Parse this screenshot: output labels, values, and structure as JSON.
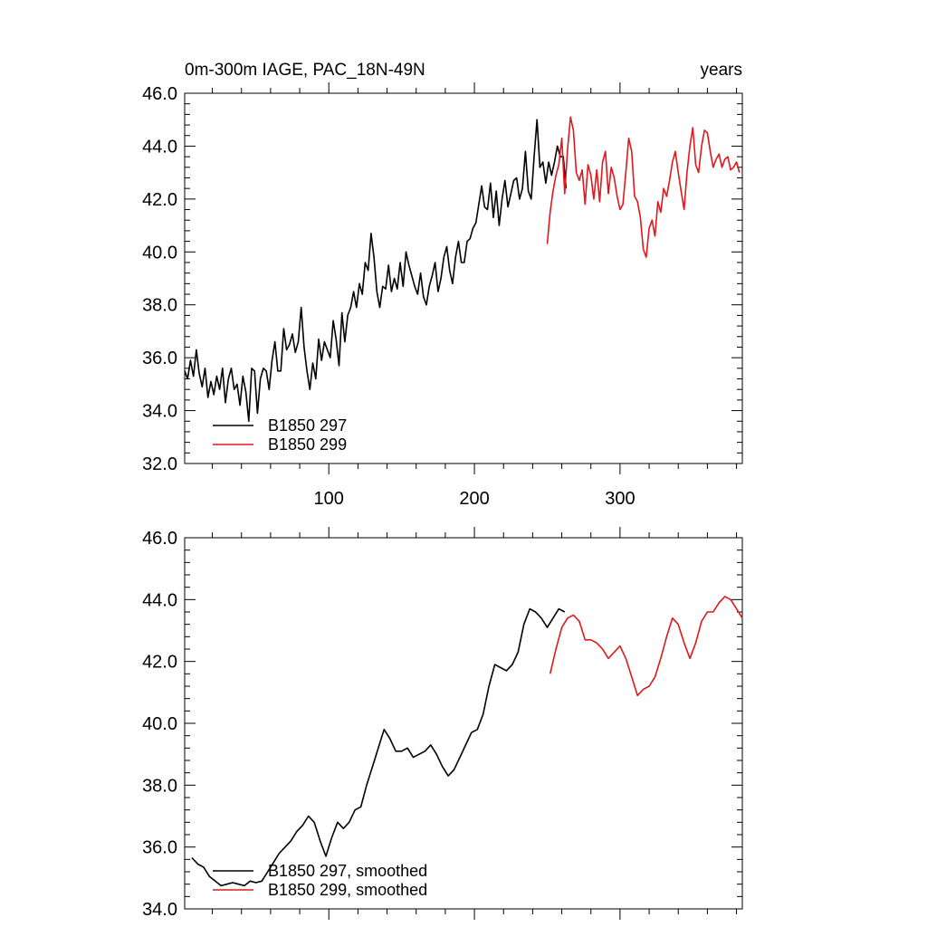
{
  "colors": {
    "series_black": "#000000",
    "series_red": "#e0181c"
  },
  "chart_data": [
    {
      "type": "line",
      "title": "0m-300m IAGE, PAC_18N-49N",
      "right_title": "years",
      "xlim": [
        1,
        384
      ],
      "ylim": [
        32,
        46
      ],
      "yticks": [
        32,
        34,
        36,
        38,
        40,
        42,
        44,
        46
      ],
      "ytick_labels": [
        "32.0",
        "34.0",
        "36.0",
        "38.0",
        "40.0",
        "42.0",
        "44.0",
        "46.0"
      ],
      "xticks": [
        100,
        200,
        300
      ],
      "xtick_labels": [
        "100",
        "200",
        "300"
      ],
      "legend": [
        "B1850 297",
        "B1850 299"
      ],
      "series": [
        {
          "name": "B1850 297",
          "color": "#000000",
          "x_start": 1,
          "x_step": 2,
          "values": [
            35.5,
            35.2,
            35.9,
            35.3,
            36.3,
            35.4,
            34.9,
            35.6,
            34.5,
            35.1,
            34.6,
            35.3,
            34.8,
            35.6,
            34.3,
            35.2,
            35.6,
            34.8,
            35.0,
            34.2,
            35.3,
            34.7,
            33.6,
            35.6,
            35.5,
            33.9,
            35.2,
            35.6,
            35.5,
            34.8,
            35.9,
            36.6,
            35.5,
            35.5,
            37.1,
            36.3,
            36.5,
            36.9,
            36.2,
            36.6,
            37.9,
            36.4,
            35.5,
            34.8,
            35.8,
            35.2,
            36.7,
            35.9,
            36.6,
            36.3,
            36.0,
            37.4,
            36.7,
            35.7,
            37.7,
            36.6,
            37.6,
            37.9,
            38.5,
            37.9,
            38.8,
            38.4,
            39.6,
            39.3,
            40.7,
            39.8,
            38.5,
            37.9,
            38.7,
            38.6,
            39.5,
            38.5,
            39.0,
            38.6,
            39.6,
            38.7,
            40.0,
            39.5,
            39.1,
            38.7,
            38.4,
            39.2,
            38.3,
            38.0,
            38.7,
            39.1,
            39.6,
            38.5,
            39.0,
            39.8,
            40.2,
            39.3,
            38.8,
            39.8,
            40.4,
            39.6,
            39.6,
            40.4,
            40.5,
            40.9,
            41.1,
            41.8,
            42.5,
            41.7,
            41.6,
            42.6,
            41.3,
            42.3,
            41.0,
            42.0,
            42.7,
            41.7,
            42.2,
            42.7,
            42.8,
            42.0,
            42.4,
            43.8,
            42.3,
            42.0,
            43.6,
            45.0,
            43.2,
            43.4,
            42.6,
            43.4,
            42.9,
            43.4,
            44.0,
            43.6,
            43.6,
            42.4
          ]
        },
        {
          "name": "B1850 299",
          "color": "#e0181c",
          "x_start": 250,
          "x_step": 2,
          "values": [
            40.3,
            41.5,
            42.3,
            42.9,
            43.3,
            44.3,
            42.2,
            43.9,
            45.1,
            44.6,
            43.0,
            42.7,
            43.1,
            41.8,
            43.3,
            42.9,
            42.0,
            43.1,
            41.9,
            43.4,
            43.8,
            42.2,
            43.2,
            42.8,
            42.1,
            41.6,
            41.8,
            43.0,
            44.3,
            43.8,
            42.1,
            41.9,
            41.3,
            40.1,
            39.8,
            40.9,
            41.2,
            40.6,
            41.9,
            41.5,
            42.4,
            42.1,
            42.7,
            43.4,
            43.8,
            43.0,
            42.3,
            41.6,
            43.0,
            44.0,
            44.7,
            43.3,
            43.0,
            44.0,
            44.6,
            44.5,
            43.8,
            43.2,
            43.5,
            43.7,
            43.2,
            43.5,
            43.6,
            43.1,
            43.2,
            43.4,
            43.0
          ]
        }
      ]
    },
    {
      "type": "line",
      "xlim": [
        1,
        384
      ],
      "ylim": [
        34,
        46
      ],
      "yticks": [
        34,
        36,
        38,
        40,
        42,
        44,
        46
      ],
      "ytick_labels": [
        "34.0",
        "36.0",
        "38.0",
        "40.0",
        "42.0",
        "44.0",
        "46.0"
      ],
      "xticks": [
        100,
        200,
        300
      ],
      "xtick_labels": [],
      "legend": [
        "B1850 297, smoothed",
        "B1850 299, smoothed"
      ],
      "series": [
        {
          "name": "B1850 297, smoothed",
          "color": "#000000",
          "x_start": 6,
          "x_step": 4,
          "values": [
            35.65,
            35.45,
            35.35,
            35.05,
            34.9,
            34.75,
            34.8,
            34.85,
            34.8,
            34.75,
            34.9,
            34.85,
            34.9,
            35.2,
            35.5,
            35.8,
            36.0,
            36.2,
            36.5,
            36.7,
            37.0,
            36.8,
            36.2,
            35.7,
            36.3,
            36.8,
            36.6,
            36.8,
            37.2,
            37.3,
            38.0,
            38.6,
            39.2,
            39.8,
            39.5,
            39.1,
            39.1,
            39.2,
            38.9,
            39.0,
            39.1,
            39.3,
            39.0,
            38.6,
            38.3,
            38.5,
            38.9,
            39.3,
            39.7,
            39.8,
            40.3,
            41.2,
            41.9,
            41.8,
            41.7,
            41.9,
            42.3,
            43.2,
            43.7,
            43.6,
            43.4,
            43.1,
            43.4,
            43.7,
            43.6
          ]
        },
        {
          "name": "B1850 299, smoothed",
          "color": "#e0181c",
          "x_start": 252,
          "x_step": 4,
          "values": [
            41.6,
            42.4,
            43.1,
            43.4,
            43.5,
            43.3,
            42.7,
            42.7,
            42.6,
            42.4,
            42.1,
            42.3,
            42.5,
            42.1,
            41.5,
            40.9,
            41.1,
            41.2,
            41.5,
            42.1,
            42.8,
            43.4,
            43.2,
            42.6,
            42.1,
            42.6,
            43.3,
            43.6,
            43.6,
            43.9,
            44.1,
            44.0,
            43.7,
            43.4
          ]
        }
      ]
    }
  ]
}
